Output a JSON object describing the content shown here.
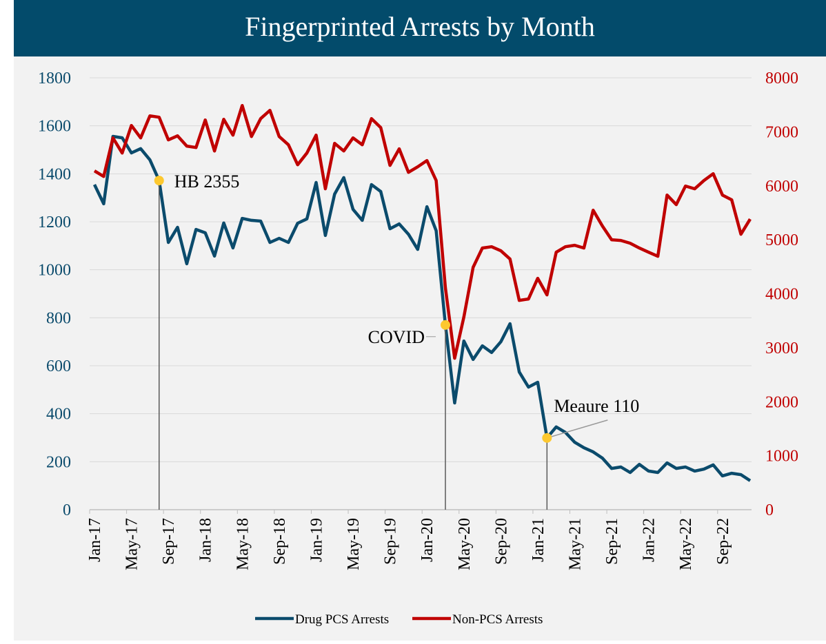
{
  "chart_data": {
    "type": "line",
    "title": "Fingerprinted Arrests by Month",
    "categories": [
      "Jan-17",
      null,
      null,
      null,
      "May-17",
      null,
      null,
      null,
      "Sep-17",
      null,
      null,
      null,
      "Jan-18",
      null,
      null,
      null,
      "May-18",
      null,
      null,
      null,
      "Sep-18",
      null,
      null,
      null,
      "Jan-19",
      null,
      null,
      null,
      "May-19",
      null,
      null,
      null,
      "Sep-19",
      null,
      null,
      null,
      "Jan-20",
      null,
      null,
      null,
      "May-20",
      null,
      null,
      null,
      "Sep-20",
      null,
      null,
      null,
      "Jan-21",
      null,
      null,
      null,
      "May-21",
      null,
      null,
      null,
      "Sep-21",
      null,
      null,
      null,
      "Jan-22",
      null,
      null,
      null,
      "May-22",
      null,
      null,
      null,
      "Sep-22",
      null,
      null,
      null
    ],
    "series": [
      {
        "name": "Drug PCS Arrests",
        "color": "#0b4b6c",
        "axis": "y",
        "values": [
          1355,
          1275,
          1556,
          1550,
          1487,
          1505,
          1458,
          1372,
          1114,
          1177,
          1025,
          1168,
          1154,
          1057,
          1195,
          1091,
          1214,
          1206,
          1203,
          1114,
          1131,
          1114,
          1194,
          1212,
          1364,
          1143,
          1315,
          1384,
          1252,
          1206,
          1355,
          1326,
          1171,
          1191,
          1148,
          1085,
          1263,
          1163,
          770,
          445,
          703,
          626,
          683,
          655,
          700,
          775,
          574,
          511,
          531,
          299,
          345,
          322,
          281,
          258,
          241,
          215,
          172,
          178,
          155,
          189,
          161,
          155,
          195,
          172,
          178,
          161,
          169,
          187,
          141,
          152,
          146,
          121
        ]
      },
      {
        "name": "Non-PCS Arrests",
        "color": "#c00000",
        "axis": "y2",
        "values": [
          6276,
          6173,
          6888,
          6607,
          7117,
          6888,
          7296,
          7270,
          6850,
          6926,
          6735,
          6709,
          7219,
          6645,
          7232,
          6939,
          7487,
          6913,
          7245,
          7398,
          6913,
          6760,
          6390,
          6607,
          6939,
          5944,
          6786,
          6645,
          6888,
          6760,
          7245,
          7079,
          6378,
          6684,
          6250,
          6352,
          6467,
          6097,
          4107,
          2806,
          3571,
          4490,
          4847,
          4872,
          4796,
          4643,
          3878,
          3903,
          4286,
          3980,
          4770,
          4872,
          4898,
          4847,
          5548,
          5255,
          5000,
          4987,
          4936,
          4847,
          4770,
          4694,
          5829,
          5651,
          5995,
          5944,
          6097,
          6224,
          5829,
          5740,
          5102,
          5383
        ]
      }
    ],
    "ylim": [
      0,
      1800
    ],
    "yticks": [
      0,
      200,
      400,
      600,
      800,
      1000,
      1200,
      1400,
      1600,
      1800
    ],
    "y2lim": [
      0,
      8000
    ],
    "y2ticks": [
      0,
      1000,
      2000,
      3000,
      4000,
      5000,
      6000,
      7000,
      8000
    ],
    "grid": true,
    "legend": "bottom",
    "annotations": [
      {
        "text": "HB 2355",
        "series": 0,
        "index": 7
      },
      {
        "text": "COVID",
        "series": 0,
        "index": 38
      },
      {
        "text": "Meaure 110",
        "series": 0,
        "index": 49
      }
    ]
  }
}
